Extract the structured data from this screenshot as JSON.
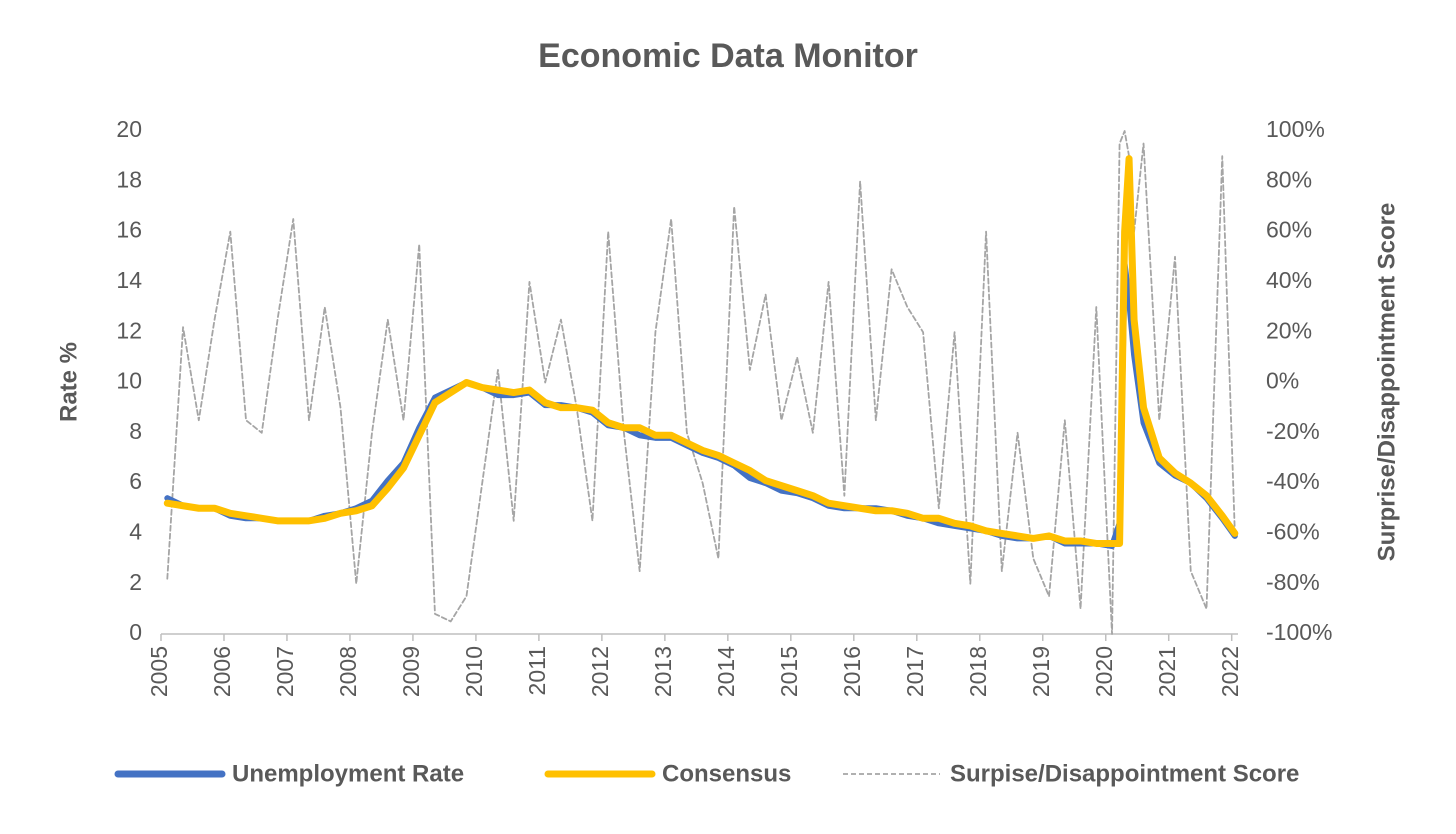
{
  "chart_data": {
    "type": "line",
    "title": "Economic Data Monitor",
    "y_label": "Rate %",
    "y2_label": "Surprise/Disappointment Score",
    "x": [
      2005.1,
      2005.35,
      2005.6,
      2005.85,
      2006.1,
      2006.35,
      2006.6,
      2006.85,
      2007.1,
      2007.35,
      2007.6,
      2007.85,
      2008.1,
      2008.35,
      2008.6,
      2008.85,
      2009.1,
      2009.35,
      2009.6,
      2009.85,
      2010.1,
      2010.35,
      2010.6,
      2010.85,
      2011.1,
      2011.35,
      2011.6,
      2011.85,
      2012.1,
      2012.35,
      2012.6,
      2012.85,
      2013.1,
      2013.35,
      2013.6,
      2013.85,
      2014.1,
      2014.35,
      2014.6,
      2014.85,
      2015.1,
      2015.35,
      2015.6,
      2015.85,
      2016.1,
      2016.35,
      2016.6,
      2016.85,
      2017.1,
      2017.35,
      2017.6,
      2017.85,
      2018.1,
      2018.35,
      2018.6,
      2018.85,
      2019.1,
      2019.35,
      2019.6,
      2019.85,
      2020.1,
      2020.22,
      2020.3,
      2020.37,
      2020.45,
      2020.6,
      2020.85,
      2021.1,
      2021.35,
      2021.6,
      2021.85,
      2022.05
    ],
    "series": [
      {
        "name": "Surpise/Disappointment Score",
        "color": "#a5a5a5",
        "dashed": true,
        "axis": "y2",
        "values": [
          -78,
          22,
          -15,
          25,
          60,
          -15,
          -20,
          25,
          65,
          -15,
          30,
          -10,
          -80,
          -20,
          25,
          -15,
          55,
          -92,
          -95,
          -85,
          -40,
          5,
          -55,
          40,
          0,
          25,
          -10,
          -55,
          60,
          -20,
          -75,
          20,
          65,
          -20,
          -40,
          -70,
          70,
          5,
          35,
          -15,
          10,
          -20,
          40,
          -45,
          80,
          -15,
          45,
          30,
          20,
          -50,
          20,
          -80,
          60,
          -75,
          -20,
          -70,
          -85,
          -15,
          -90,
          30,
          -100,
          95,
          100,
          90,
          60,
          95,
          -15,
          50,
          -75,
          -90,
          90,
          -60
        ]
      },
      {
        "name": "Unemployment Rate",
        "color": "#4472c4",
        "values": [
          5.4,
          5.1,
          5.0,
          5.0,
          4.7,
          4.6,
          4.6,
          4.5,
          4.5,
          4.5,
          4.7,
          4.8,
          5.0,
          5.3,
          6.1,
          6.8,
          8.2,
          9.4,
          9.7,
          10.0,
          9.8,
          9.5,
          9.5,
          9.6,
          9.1,
          9.1,
          9.0,
          8.8,
          8.3,
          8.2,
          7.9,
          7.8,
          7.8,
          7.5,
          7.2,
          7.0,
          6.7,
          6.2,
          6.0,
          5.7,
          5.6,
          5.4,
          5.1,
          5.0,
          5.0,
          5.0,
          4.9,
          4.7,
          4.6,
          4.4,
          4.3,
          4.2,
          4.1,
          3.9,
          3.8,
          3.8,
          3.9,
          3.6,
          3.6,
          3.6,
          3.5,
          4.4,
          14.7,
          13.3,
          11.1,
          8.4,
          6.8,
          6.3,
          6.0,
          5.4,
          4.6,
          3.9
        ]
      },
      {
        "name": "Consensus",
        "color": "#ffc000",
        "values": [
          5.2,
          5.1,
          5.0,
          5.0,
          4.8,
          4.7,
          4.6,
          4.5,
          4.5,
          4.5,
          4.6,
          4.8,
          4.9,
          5.1,
          5.8,
          6.6,
          7.9,
          9.2,
          9.6,
          10.0,
          9.8,
          9.7,
          9.6,
          9.7,
          9.2,
          9.0,
          9.0,
          8.9,
          8.4,
          8.2,
          8.2,
          7.9,
          7.9,
          7.6,
          7.3,
          7.1,
          6.8,
          6.5,
          6.1,
          5.9,
          5.7,
          5.5,
          5.2,
          5.1,
          5.0,
          4.9,
          4.9,
          4.8,
          4.6,
          4.6,
          4.4,
          4.3,
          4.1,
          4.0,
          3.9,
          3.8,
          3.9,
          3.7,
          3.7,
          3.6,
          3.6,
          3.6,
          16.0,
          18.9,
          12.5,
          9.0,
          7.0,
          6.4,
          6.0,
          5.5,
          4.7,
          4.0
        ]
      }
    ],
    "xlim": [
      2005,
      2022.1
    ],
    "xticks": [
      2005,
      2006,
      2007,
      2008,
      2009,
      2010,
      2011,
      2012,
      2013,
      2014,
      2015,
      2016,
      2017,
      2018,
      2019,
      2020,
      2021,
      2022
    ],
    "ylim": [
      0,
      20
    ],
    "yticks": [
      0,
      2,
      4,
      6,
      8,
      10,
      12,
      14,
      16,
      18,
      20
    ],
    "y2lim": [
      -100,
      100
    ],
    "y2ticks": [
      {
        "value": -100,
        "label": "-100%"
      },
      {
        "value": -80,
        "label": "-80%"
      },
      {
        "value": -60,
        "label": "-60%"
      },
      {
        "value": -40,
        "label": "-40%"
      },
      {
        "value": -20,
        "label": "-20%"
      },
      {
        "value": 0,
        "label": "0%"
      },
      {
        "value": 20,
        "label": "20%"
      },
      {
        "value": 40,
        "label": "40%"
      },
      {
        "value": 60,
        "label": "60%"
      },
      {
        "value": 80,
        "label": "80%"
      },
      {
        "value": 100,
        "label": "100%"
      }
    ],
    "grid": false,
    "legend": "bottom"
  }
}
